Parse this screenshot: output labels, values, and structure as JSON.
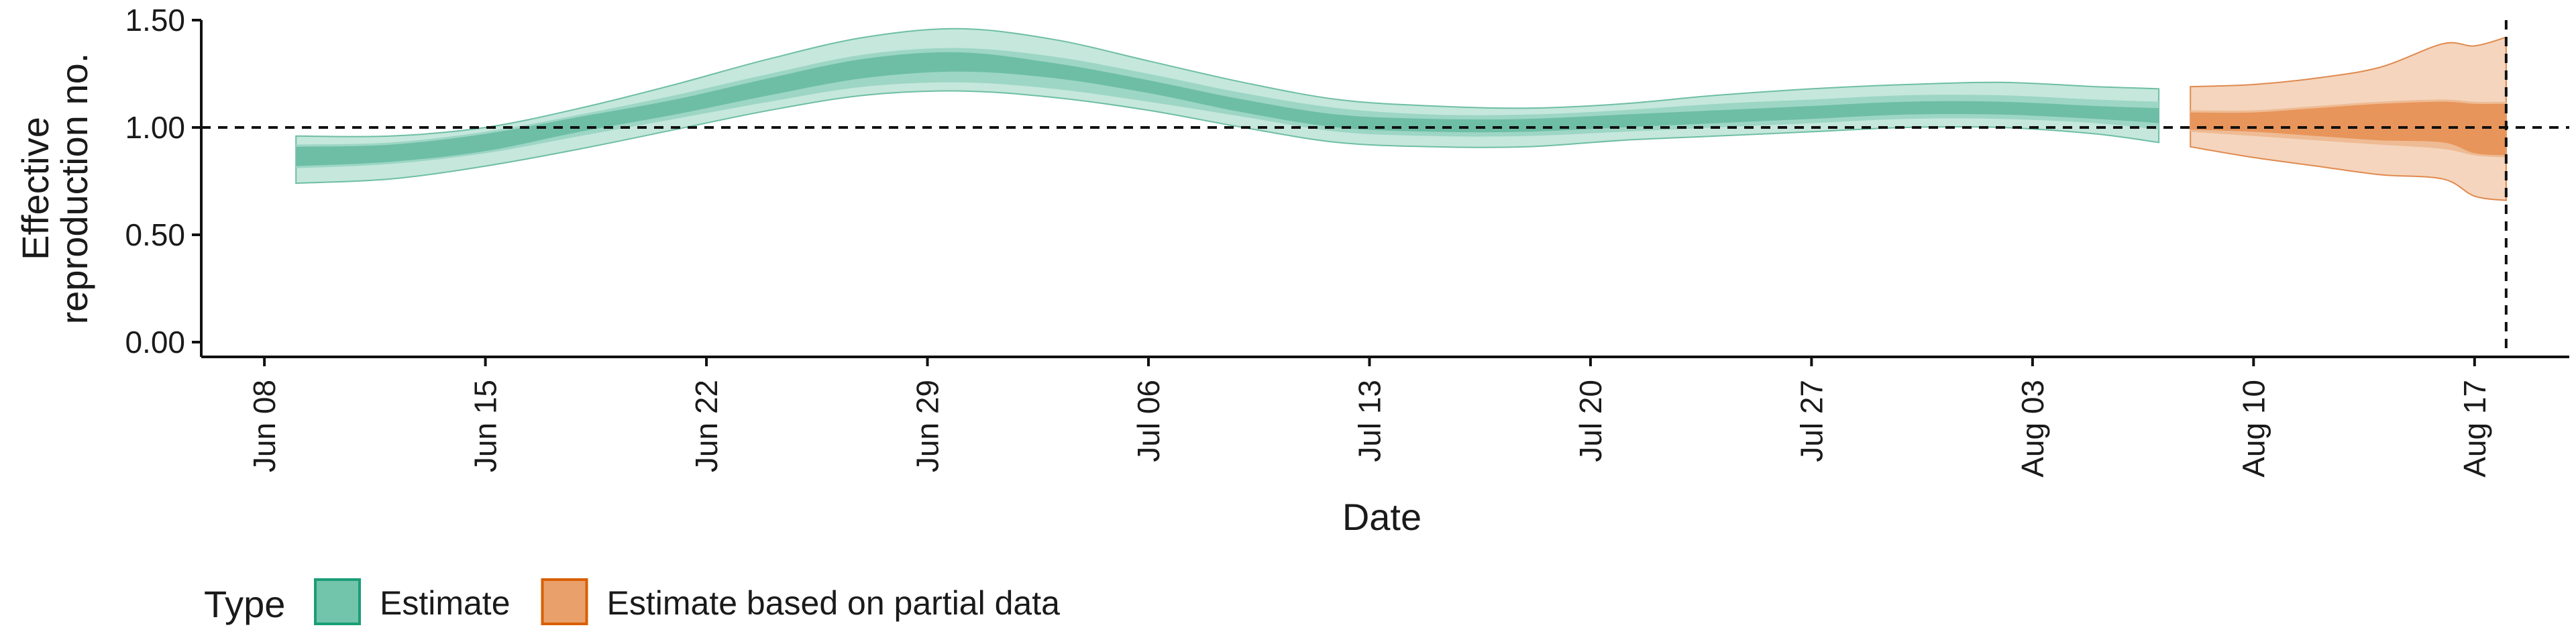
{
  "chart_data": {
    "type": "area",
    "xlabel": "Date",
    "ylabel_lines": [
      "Effective",
      "reproduction no."
    ],
    "ylim": [
      0,
      1.55
    ],
    "y_ticks": [
      0.0,
      0.5,
      1.0,
      1.5
    ],
    "y_tick_labels": [
      "0.00",
      "0.50",
      "1.00",
      "1.50"
    ],
    "xlim": [
      "2020-06-06",
      "2020-08-20"
    ],
    "x_ticks": [
      "2020-06-08",
      "2020-06-15",
      "2020-06-22",
      "2020-06-29",
      "2020-07-06",
      "2020-07-13",
      "2020-07-20",
      "2020-07-27",
      "2020-08-03",
      "2020-08-10",
      "2020-08-17"
    ],
    "x_tick_labels": [
      "Jun 08",
      "Jun 15",
      "Jun 22",
      "Jun 29",
      "Jul 06",
      "Jul 13",
      "Jul 20",
      "Jul 27",
      "Aug 03",
      "Aug 10",
      "Aug 17"
    ],
    "reference_line": {
      "y": 1.0,
      "style": "dashed"
    },
    "vertical_line": {
      "x": "2020-08-18",
      "style": "dashed"
    },
    "grid": false,
    "legend": {
      "title": "Type",
      "position": "bottom-left",
      "items": [
        {
          "label": "Estimate",
          "fill": "#72c4ab",
          "stroke": "#1b9e77"
        },
        {
          "label": "Estimate based on partial data",
          "fill": "#e9a06b",
          "stroke": "#d95f02"
        }
      ]
    },
    "series": [
      {
        "name": "Estimate",
        "colors": {
          "outer": "#c5e7dc",
          "inner": "#9dd6c4",
          "core": "#6ebea6",
          "edge": "#6ebea6"
        },
        "x": [
          "2020-06-09",
          "2020-06-12",
          "2020-06-15",
          "2020-06-18",
          "2020-06-21",
          "2020-06-24",
          "2020-06-27",
          "2020-06-30",
          "2020-07-03",
          "2020-07-06",
          "2020-07-09",
          "2020-07-12",
          "2020-07-15",
          "2020-07-18",
          "2020-07-21",
          "2020-07-24",
          "2020-07-27",
          "2020-07-30",
          "2020-08-02",
          "2020-08-05",
          "2020-08-07"
        ],
        "outer_lower": [
          0.74,
          0.76,
          0.82,
          0.9,
          0.99,
          1.08,
          1.15,
          1.17,
          1.14,
          1.08,
          1.0,
          0.93,
          0.91,
          0.91,
          0.94,
          0.96,
          0.98,
          1.0,
          1.0,
          0.97,
          0.93
        ],
        "inner_lower": [
          0.81,
          0.83,
          0.88,
          0.96,
          1.04,
          1.12,
          1.19,
          1.21,
          1.18,
          1.12,
          1.05,
          0.98,
          0.96,
          0.96,
          0.98,
          1.0,
          1.02,
          1.04,
          1.04,
          1.02,
          0.99
        ],
        "core_lower": [
          0.82,
          0.84,
          0.89,
          0.98,
          1.06,
          1.15,
          1.23,
          1.26,
          1.23,
          1.16,
          1.07,
          1.0,
          0.98,
          0.98,
          1.0,
          1.02,
          1.04,
          1.06,
          1.06,
          1.04,
          1.02
        ],
        "core_upper": [
          0.91,
          0.92,
          0.97,
          1.05,
          1.13,
          1.23,
          1.32,
          1.35,
          1.3,
          1.22,
          1.13,
          1.06,
          1.04,
          1.04,
          1.06,
          1.08,
          1.1,
          1.12,
          1.12,
          1.1,
          1.09
        ],
        "inner_upper": [
          0.92,
          0.93,
          0.98,
          1.06,
          1.15,
          1.25,
          1.34,
          1.37,
          1.33,
          1.25,
          1.16,
          1.09,
          1.06,
          1.06,
          1.08,
          1.11,
          1.13,
          1.15,
          1.15,
          1.13,
          1.12
        ],
        "outer_upper": [
          0.96,
          0.96,
          1.0,
          1.09,
          1.2,
          1.32,
          1.42,
          1.46,
          1.41,
          1.31,
          1.21,
          1.13,
          1.1,
          1.09,
          1.11,
          1.15,
          1.18,
          1.2,
          1.21,
          1.19,
          1.18
        ]
      },
      {
        "name": "Estimate based on partial data",
        "colors": {
          "outer": "#f5d5bd",
          "inner": "#eebb94",
          "core": "#e8955b",
          "edge": "#e08a4f"
        },
        "x": [
          "2020-08-08",
          "2020-08-10",
          "2020-08-12",
          "2020-08-14",
          "2020-08-16",
          "2020-08-17",
          "2020-08-18"
        ],
        "outer_lower": [
          0.91,
          0.86,
          0.82,
          0.78,
          0.76,
          0.68,
          0.66
        ],
        "inner_lower": [
          0.98,
          0.96,
          0.94,
          0.92,
          0.9,
          0.87,
          0.86
        ],
        "core_lower": [
          0.99,
          0.98,
          0.96,
          0.94,
          0.93,
          0.88,
          0.87
        ],
        "core_upper": [
          1.07,
          1.07,
          1.09,
          1.11,
          1.12,
          1.11,
          1.11
        ],
        "inner_upper": [
          1.08,
          1.08,
          1.1,
          1.12,
          1.13,
          1.12,
          1.12
        ],
        "outer_upper": [
          1.19,
          1.2,
          1.23,
          1.28,
          1.39,
          1.38,
          1.42
        ]
      }
    ]
  }
}
